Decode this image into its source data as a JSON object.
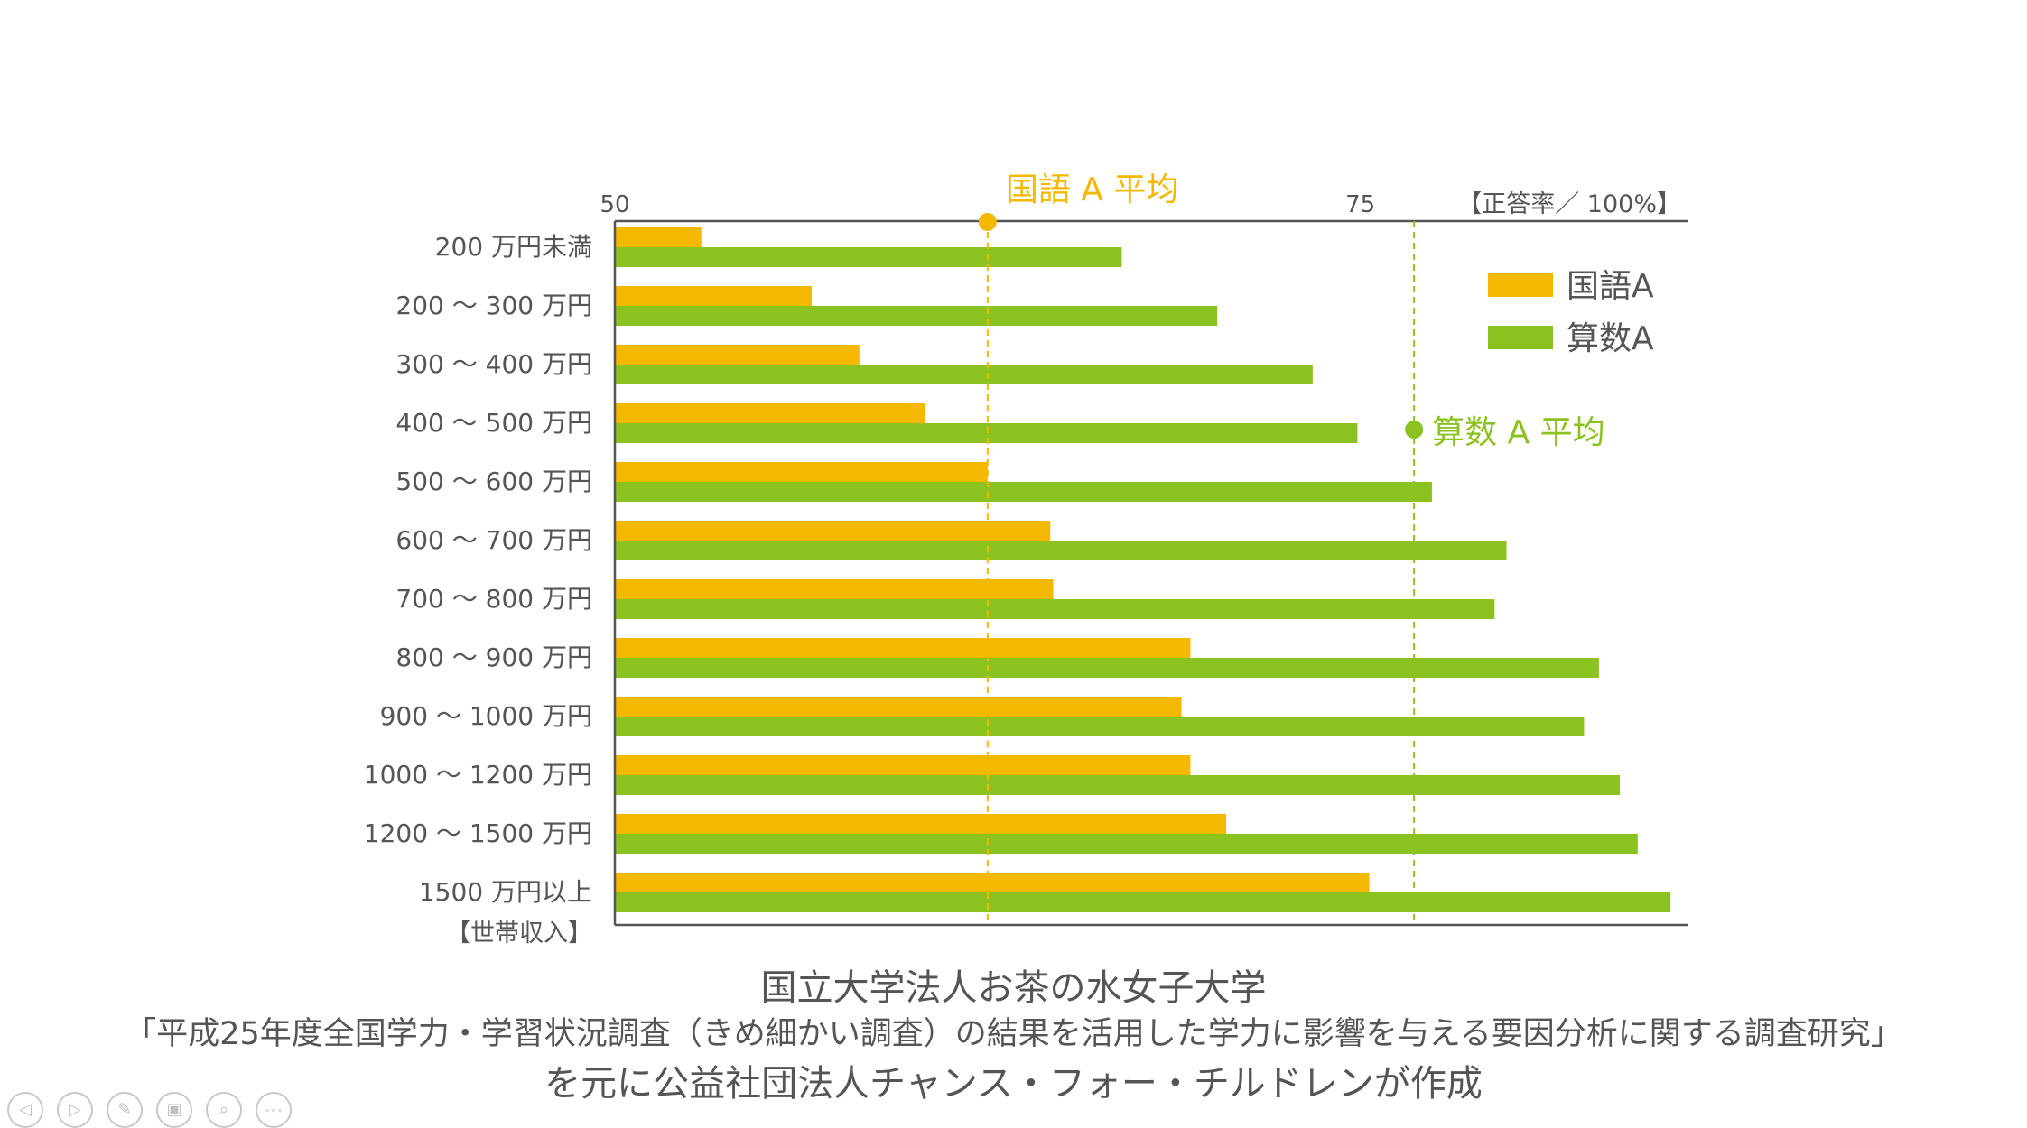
{
  "chart_data": {
    "type": "bar",
    "orientation": "horizontal",
    "categories": [
      "200 万円未満",
      "200 ～ 300 万円",
      "300 ～ 400 万円",
      "400 ～ 500 万円",
      "500 ～ 600 万円",
      "600 ～ 700 万円",
      "700 ～ 800 万円",
      "800 ～ 900 万円",
      "900 ～ 1000 万円",
      "1000 ～ 1200 万円",
      "1200 ～ 1500 万円",
      "1500 万円以上"
    ],
    "series": [
      {
        "name": "国語A",
        "color": "#f5b800",
        "values": [
          52.9,
          56.6,
          58.2,
          60.4,
          62.5,
          64.6,
          64.7,
          69.3,
          69.0,
          69.3,
          70.5,
          75.3
        ]
      },
      {
        "name": "算数A",
        "color": "#8cc21f",
        "values": [
          67.0,
          70.2,
          73.4,
          74.9,
          77.4,
          79.9,
          79.5,
          83.0,
          82.5,
          83.7,
          84.3,
          85.4
        ]
      }
    ],
    "xlim": [
      50,
      86
    ],
    "x_tick_labels": [
      {
        "value": 50,
        "label": "50"
      },
      {
        "value": 75,
        "label": "75"
      }
    ],
    "x_unit_label": "【正答率／ 100%】",
    "y_axis_label": "【世帯収入】",
    "reference_lines": [
      {
        "label": "国語 A 平均",
        "value": 62.5,
        "color": "#f5b800"
      },
      {
        "label": "算数 A 平均",
        "value": 76.8,
        "color": "#8cc21f"
      }
    ],
    "legend_position": "top-right"
  },
  "caption": {
    "line1": "国立大学法人お茶の水女子大学",
    "line2": "「平成25年度全国学力・学習状況調査（きめ細かい調査）の結果を活用した学力に影響を与える要因分析に関する調査研究」",
    "line3": "を元に公益社団法人チャンス・フォー・チルドレンが作成"
  },
  "toolbar": {
    "buttons": [
      {
        "name": "previous-icon",
        "glyph": "◁"
      },
      {
        "name": "next-icon",
        "glyph": "▷"
      },
      {
        "name": "pen-icon",
        "glyph": "✎"
      },
      {
        "name": "slides-icon",
        "glyph": "▣"
      },
      {
        "name": "zoom-icon",
        "glyph": "⌕"
      },
      {
        "name": "more-icon",
        "glyph": "∘∘∘"
      }
    ]
  }
}
